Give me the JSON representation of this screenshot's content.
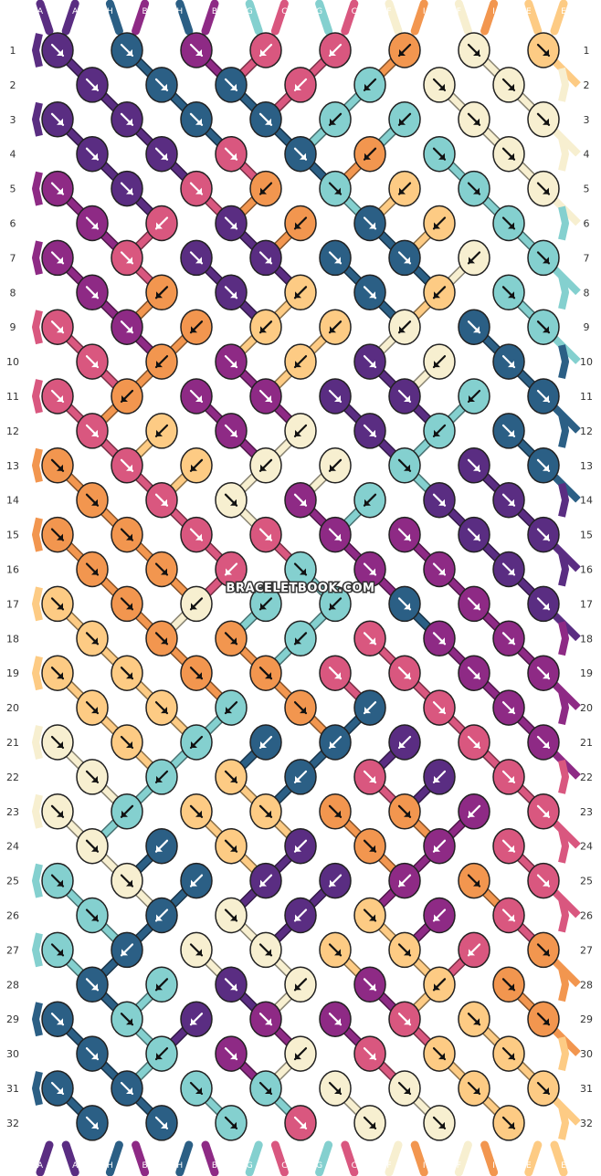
{
  "strands": [
    "A",
    "A",
    "H",
    "B",
    "H",
    "B",
    "G",
    "C",
    "G",
    "C",
    "F",
    "I",
    "F",
    "I",
    "E",
    "E"
  ],
  "colors": {
    "A": "#5a2d82",
    "B": "#8e2a85",
    "C": "#d9577f",
    "D": "#f2964f",
    "E": "#fdcb84",
    "F": "#f7efd0",
    "G": "#84d0cf",
    "H": "#2b5f85",
    "I": "#f2964f"
  },
  "rows": [
    "1",
    "2",
    "3",
    "4",
    "5",
    "6",
    "7",
    "8",
    "9",
    "10",
    "11",
    "12",
    "13",
    "14",
    "15",
    "16",
    "17",
    "18",
    "19",
    "20",
    "21",
    "22",
    "23",
    "24",
    "25",
    "26",
    "27",
    "28",
    "29",
    "30",
    "31",
    "32"
  ],
  "knots": [
    [
      "A",
      "H",
      "B",
      "C",
      "C",
      "I",
      "F",
      "E"
    ],
    [
      "A",
      "H",
      "H",
      "C",
      "G",
      "F",
      "F"
    ],
    [
      "A",
      "A",
      "H",
      "H",
      "G",
      "G",
      "F",
      "F"
    ],
    [
      "A",
      "A",
      "C",
      "H",
      "I",
      "G",
      "F"
    ],
    [
      "B",
      "A",
      "C",
      "I",
      "G",
      "E",
      "G",
      "F"
    ],
    [
      "B",
      "C",
      "A",
      "I",
      "H",
      "E",
      "G"
    ],
    [
      "B",
      "C",
      "A",
      "A",
      "H",
      "H",
      "F",
      "G"
    ],
    [
      "B",
      "I",
      "A",
      "E",
      "H",
      "E",
      "G"
    ],
    [
      "C",
      "B",
      "I",
      "E",
      "E",
      "F",
      "H",
      "G"
    ],
    [
      "C",
      "I",
      "B",
      "E",
      "A",
      "F",
      "H"
    ],
    [
      "C",
      "I",
      "B",
      "B",
      "A",
      "A",
      "G",
      "H"
    ],
    [
      "C",
      "E",
      "B",
      "F",
      "A",
      "G",
      "H"
    ],
    [
      "I",
      "C",
      "E",
      "F",
      "F",
      "G",
      "A",
      "H"
    ],
    [
      "I",
      "C",
      "F",
      "B",
      "G",
      "A",
      "A"
    ],
    [
      "I",
      "I",
      "C",
      "C",
      "B",
      "B",
      "A",
      "A"
    ],
    [
      "I",
      "I",
      "C",
      "G",
      "B",
      "B",
      "A"
    ],
    [
      "E",
      "I",
      "F",
      "G",
      "G",
      "H",
      "B",
      "A"
    ],
    [
      "E",
      "I",
      "I",
      "G",
      "C",
      "B",
      "B"
    ],
    [
      "E",
      "E",
      "I",
      "I",
      "C",
      "C",
      "B",
      "B"
    ],
    [
      "E",
      "E",
      "G",
      "I",
      "H",
      "C",
      "B"
    ],
    [
      "F",
      "E",
      "G",
      "H",
      "H",
      "A",
      "C",
      "B"
    ],
    [
      "F",
      "G",
      "E",
      "H",
      "C",
      "A",
      "C"
    ],
    [
      "F",
      "G",
      "E",
      "E",
      "I",
      "I",
      "B",
      "C"
    ],
    [
      "F",
      "H",
      "E",
      "A",
      "I",
      "B",
      "C"
    ],
    [
      "G",
      "F",
      "H",
      "A",
      "A",
      "B",
      "I",
      "C"
    ],
    [
      "G",
      "H",
      "F",
      "A",
      "E",
      "B",
      "C"
    ],
    [
      "G",
      "H",
      "F",
      "F",
      "E",
      "E",
      "C",
      "I"
    ],
    [
      "H",
      "G",
      "A",
      "F",
      "B",
      "E",
      "I"
    ],
    [
      "H",
      "G",
      "A",
      "B",
      "B",
      "C",
      "E",
      "I"
    ],
    [
      "H",
      "G",
      "B",
      "F",
      "C",
      "E",
      "E"
    ],
    [
      "H",
      "H",
      "G",
      "G",
      "F",
      "F",
      "E",
      "E"
    ],
    [
      "H",
      "H",
      "G",
      "C",
      "F",
      "F",
      "E"
    ]
  ],
  "arrows": [
    [
      "dr",
      "dr",
      "dr",
      "dl",
      "dl",
      "dl",
      "dr",
      "dr"
    ],
    [
      "dr",
      "dr",
      "dr",
      "dl",
      "dl",
      "dr",
      "dr"
    ],
    [
      "dr",
      "dr",
      "dr",
      "dr",
      "dl",
      "dl",
      "dr",
      "dr"
    ],
    [
      "dr",
      "dr",
      "dr",
      "dr",
      "dl",
      "dr",
      "dr"
    ],
    [
      "dr",
      "dr",
      "dr",
      "dl",
      "dr",
      "dl",
      "dr",
      "dr"
    ],
    [
      "dr",
      "dl",
      "dr",
      "dl",
      "dr",
      "dl",
      "dr"
    ],
    [
      "dr",
      "dr",
      "dr",
      "dr",
      "dr",
      "dr",
      "dl",
      "dr"
    ],
    [
      "dr",
      "dl",
      "dr",
      "dl",
      "dr",
      "dl",
      "dr"
    ],
    [
      "dr",
      "dr",
      "dl",
      "dl",
      "dl",
      "dl",
      "dr",
      "dr"
    ],
    [
      "dr",
      "dl",
      "dr",
      "dl",
      "dr",
      "dl",
      "dr"
    ],
    [
      "dr",
      "dl",
      "dr",
      "dr",
      "dr",
      "dr",
      "dl",
      "dr"
    ],
    [
      "dr",
      "dl",
      "dr",
      "dl",
      "dr",
      "dl",
      "dr"
    ],
    [
      "dr",
      "dr",
      "dl",
      "dl",
      "dl",
      "dr",
      "dr",
      "dr"
    ],
    [
      "dr",
      "dr",
      "dr",
      "dr",
      "dl",
      "dr",
      "dr"
    ],
    [
      "dr",
      "dr",
      "dr",
      "dr",
      "dr",
      "dr",
      "dr",
      "dr"
    ],
    [
      "dr",
      "dr",
      "dl",
      "dr",
      "dr",
      "dr",
      "dr"
    ],
    [
      "dr",
      "dr",
      "dl",
      "dl",
      "dl",
      "dr",
      "dr",
      "dr"
    ],
    [
      "dr",
      "dr",
      "dr",
      "dl",
      "dr",
      "dr",
      "dr"
    ],
    [
      "dr",
      "dr",
      "dr",
      "dr",
      "dr",
      "dr",
      "dr",
      "dr"
    ],
    [
      "dr",
      "dr",
      "dl",
      "dr",
      "dl",
      "dr",
      "dr"
    ],
    [
      "dr",
      "dr",
      "dl",
      "dl",
      "dl",
      "dl",
      "dr",
      "dr"
    ],
    [
      "dr",
      "dl",
      "dr",
      "dl",
      "dr",
      "dl",
      "dr"
    ],
    [
      "dr",
      "dl",
      "dr",
      "dr",
      "dr",
      "dr",
      "dl",
      "dr"
    ],
    [
      "dr",
      "dl",
      "dr",
      "dl",
      "dr",
      "dl",
      "dr"
    ],
    [
      "dr",
      "dr",
      "dl",
      "dl",
      "dl",
      "dl",
      "dr",
      "dr"
    ],
    [
      "dr",
      "dl",
      "dr",
      "dl",
      "dr",
      "dl",
      "dr"
    ],
    [
      "dr",
      "dl",
      "dr",
      "dr",
      "dr",
      "dr",
      "dl",
      "dr"
    ],
    [
      "dr",
      "dl",
      "dr",
      "dl",
      "dr",
      "dl",
      "dr"
    ],
    [
      "dr",
      "dr",
      "dl",
      "dr",
      "dr",
      "dr",
      "dr",
      "dr"
    ],
    [
      "dr",
      "dl",
      "dr",
      "dl",
      "dr",
      "dr",
      "dr"
    ],
    [
      "dr",
      "dr",
      "dr",
      "dr",
      "dr",
      "dr",
      "dr",
      "dr"
    ],
    [
      "dr",
      "dr",
      "dr",
      "dr",
      "dr",
      "dr",
      "dr"
    ]
  ],
  "watermark": "BRACELETBOOK.COM"
}
